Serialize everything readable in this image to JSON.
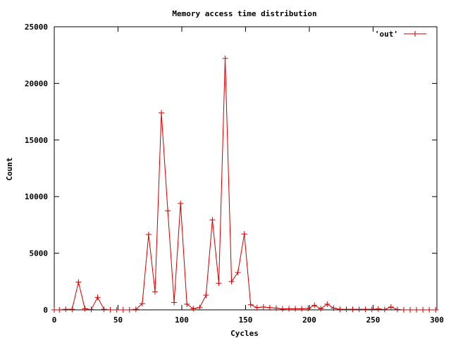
{
  "chart_data": {
    "type": "line",
    "title": "Memory access time distribution",
    "xlabel": "Cycles",
    "ylabel": "Count",
    "xlim": [
      0,
      300
    ],
    "ylim": [
      0,
      25000
    ],
    "xticks": [
      0,
      50,
      100,
      150,
      200,
      250,
      300
    ],
    "yticks": [
      0,
      5000,
      10000,
      15000,
      20000,
      25000
    ],
    "grid": false,
    "legend_position": "top-right",
    "marker": "plus",
    "series": [
      {
        "name": "'out'",
        "color": "#cc0000",
        "x": [
          0,
          4,
          9,
          14,
          19,
          24,
          29,
          34,
          39,
          44,
          49,
          54,
          59,
          64,
          69,
          74,
          79,
          84,
          89,
          94,
          99,
          104,
          109,
          114,
          119,
          124,
          129,
          134,
          139,
          144,
          149,
          154,
          159,
          164,
          169,
          174,
          179,
          184,
          189,
          194,
          199,
          204,
          209,
          214,
          219,
          224,
          229,
          234,
          239,
          244,
          249,
          254,
          259,
          264,
          269,
          274,
          279,
          284,
          289,
          294,
          299
        ],
        "y": [
          0,
          0,
          50,
          50,
          2450,
          100,
          30,
          1100,
          50,
          0,
          0,
          0,
          0,
          50,
          550,
          6650,
          1600,
          17400,
          8750,
          650,
          9400,
          500,
          100,
          200,
          1300,
          7950,
          2350,
          22200,
          2500,
          3300,
          6700,
          450,
          200,
          250,
          200,
          150,
          80,
          100,
          100,
          100,
          120,
          400,
          100,
          500,
          150,
          50,
          50,
          50,
          50,
          50,
          50,
          80,
          30,
          250,
          30,
          0,
          0,
          0,
          0,
          0,
          0
        ]
      }
    ]
  }
}
